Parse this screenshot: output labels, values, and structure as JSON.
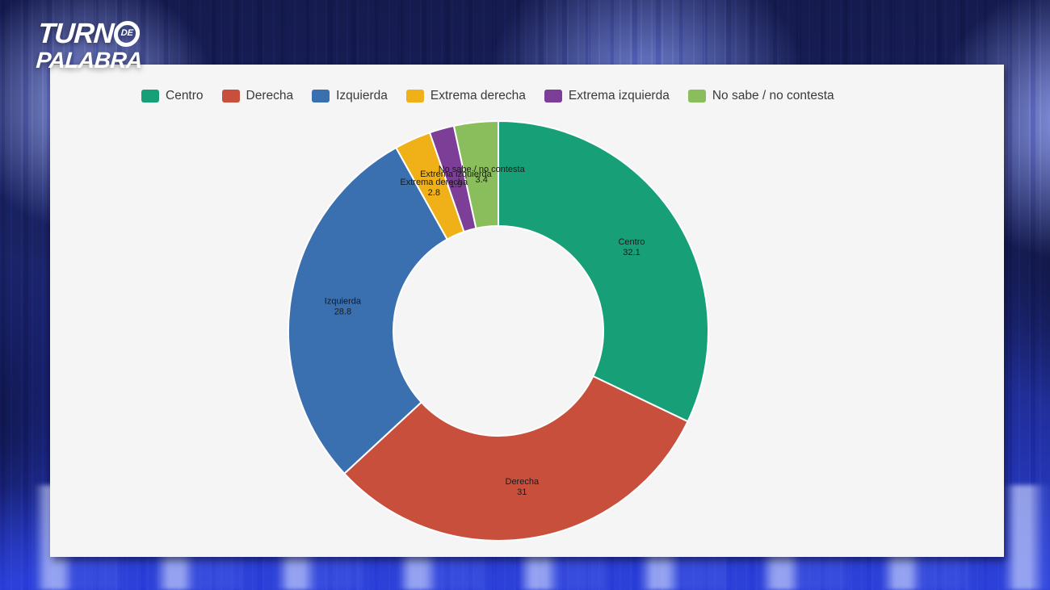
{
  "logo": {
    "line1": "TURN",
    "circle_text": "DE",
    "line2": "PALABRA"
  },
  "chart_data": {
    "type": "pie",
    "subtype": "donut",
    "title": "",
    "categories": [
      "Centro",
      "Derecha",
      "Izquierda",
      "Extrema derecha",
      "Extrema izquierda",
      "No sabe / no contesta"
    ],
    "values": [
      32.1,
      31,
      28.8,
      2.8,
      1.9,
      3.4
    ],
    "value_labels": [
      "32.1",
      "31",
      "28.8",
      "2.8",
      "1.9",
      "3.4"
    ],
    "colors": [
      "#17A077",
      "#C94F3D",
      "#3A6FB0",
      "#EFB117",
      "#7D3E97",
      "#8ABD5C"
    ],
    "legend_position": "top",
    "legend_entries": [
      "Centro",
      "Derecha",
      "Izquierda",
      "Extrema derecha",
      "Extrema izquierda",
      "No sabe / no contesta"
    ],
    "donut_hole_ratio": 0.5,
    "start_angle_deg": 0,
    "direction": "clockwise",
    "slice_gap_color": "#ffffff",
    "panel_background": "#f5f5f5"
  },
  "background": {
    "base_dark": "#151b4d",
    "base_bright": "#2c41d8",
    "blob_accent": "#93a3ee"
  }
}
